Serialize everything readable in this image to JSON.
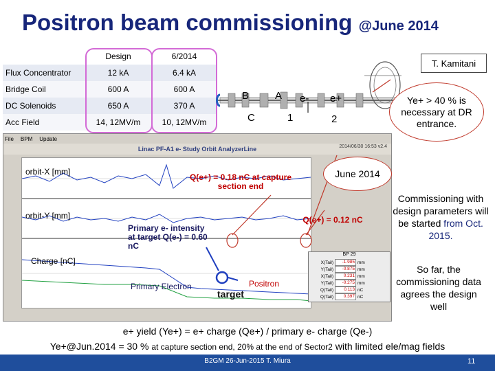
{
  "title": {
    "main": "Positron beam commissioning",
    "sub": "@June 2014"
  },
  "spec_table": {
    "headers": [
      "",
      "Design",
      "6/2014"
    ],
    "rows": [
      {
        "label": "Flux Concentrator",
        "design": "12 kA",
        "june": "6.4 kA"
      },
      {
        "label": "Bridge Coil",
        "design": "600 A",
        "june": "600 A"
      },
      {
        "label": "DC Solenoids",
        "design": "650 A",
        "june": "370 A"
      },
      {
        "label": "Acc Field",
        "design": "14, 12MV/m",
        "june": "10, 12MV/m"
      }
    ]
  },
  "author_box": "T. Kamitani",
  "beamline_labels": {
    "b": "B",
    "a": "A",
    "c": "C",
    "one": "1",
    "two": "2",
    "eminus": "e-",
    "eplus": "e+"
  },
  "callout_yield": "Ye+ > 40 % is necessary at DR entrance.",
  "app": {
    "menu": [
      "File",
      "BPM",
      "Update"
    ],
    "window_title": "Linac PF-A1 e- Study Orbit AnalyzerLine",
    "status": "2014/06/30 16:53   v2.4",
    "plot_x_label": "orbit-X [mm]",
    "plot_y_label": "orbit-Y [mm]",
    "plot_charge_label": "Charge [nC]",
    "beam_params": {
      "header": "BP 29",
      "rows": [
        {
          "name": "X(Tail)",
          "value": "-1.985",
          "unit": "mm"
        },
        {
          "name": "Y(Tail)",
          "value": "-0.875",
          "unit": "mm"
        },
        {
          "name": "X(Tail)",
          "value": "0.231",
          "unit": "mm"
        },
        {
          "name": "Y(Tail)",
          "value": "-0.275",
          "unit": "mm"
        },
        {
          "name": "Q(Tail)",
          "value": "0.113",
          "unit": "nC"
        },
        {
          "name": "Q(Tail)",
          "value": "0.397",
          "unit": "nC"
        }
      ]
    }
  },
  "annotations": {
    "qcapture": "Q(e+) = 0.18 nC at capture section end",
    "qend": "Q(e+) = 0.12 nC",
    "primary": "Primary e- intensity at target Q(e-) = 0.60 nC",
    "primary_electron": "Primary Electron",
    "positron": "Positron",
    "target": "target",
    "june2014": "June 2014"
  },
  "right_note1": {
    "line1": "Commissioning with design parameters will be started",
    "line2": "from Oct. 2015."
  },
  "right_note2": "So far, the commissioning data agrees the design well",
  "equation1": "e+ yield (Ye+) = e+ charge (Qe+) / primary e- charge (Qe-)",
  "equation2": {
    "a": "Ye+@Jun.2014 = 30 %",
    "b": "at capture section end, 20% at the end of Sector2",
    "c": "with limited ele/mag fields"
  },
  "footer": "B2GM 26-Jun-2015 T. Miura",
  "page_number": "11",
  "colors": {
    "title": "#17267a",
    "accent": "#d36ad6",
    "annotation": "#c00000",
    "footer": "#1f4e9c"
  }
}
